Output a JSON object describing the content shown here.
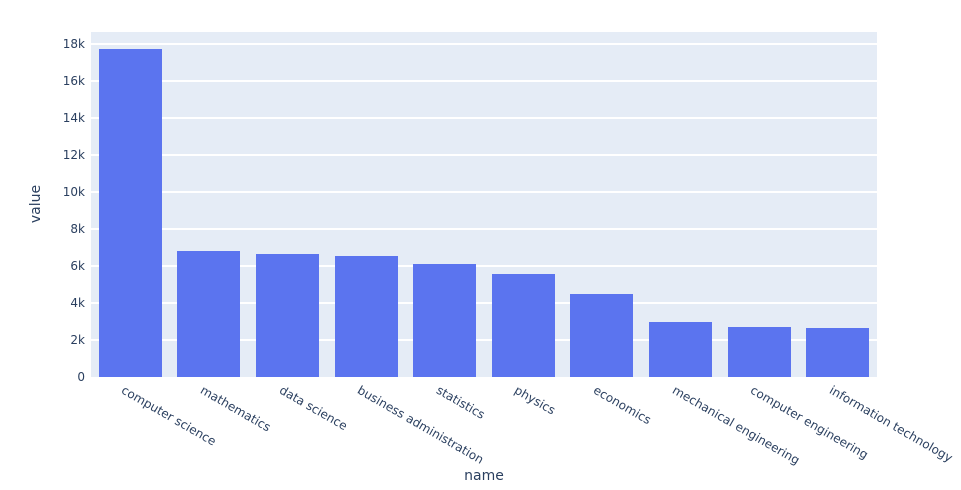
{
  "chart": {
    "colors": {
      "page_background": "#ffffff",
      "plot_background": "#e5ecf6",
      "gridline": "#ffffff",
      "bar": "#5b74ef",
      "text": "#2a3f5f"
    }
  },
  "chart_data": {
    "type": "bar",
    "title": "",
    "xlabel": "name",
    "ylabel": "value",
    "categories": [
      "computer science",
      "mathematics",
      "data science",
      "business administration",
      "statistics",
      "physics",
      "economics",
      "mechanical engineering",
      "computer engineering",
      "information technology"
    ],
    "values": [
      17750,
      6800,
      6650,
      6550,
      6100,
      5550,
      4470,
      3000,
      2730,
      2670
    ],
    "ylim": [
      0,
      18650
    ],
    "ytick_values": [
      0,
      2000,
      4000,
      6000,
      8000,
      10000,
      12000,
      14000,
      16000,
      18000
    ],
    "ytick_labels": [
      "0",
      "2k",
      "4k",
      "6k",
      "8k",
      "10k",
      "12k",
      "14k",
      "16k",
      "18k"
    ],
    "xtick_angle_deg": 30,
    "grid": "horizontal-white",
    "legend": "none",
    "bar_fraction_of_band": 0.8
  }
}
